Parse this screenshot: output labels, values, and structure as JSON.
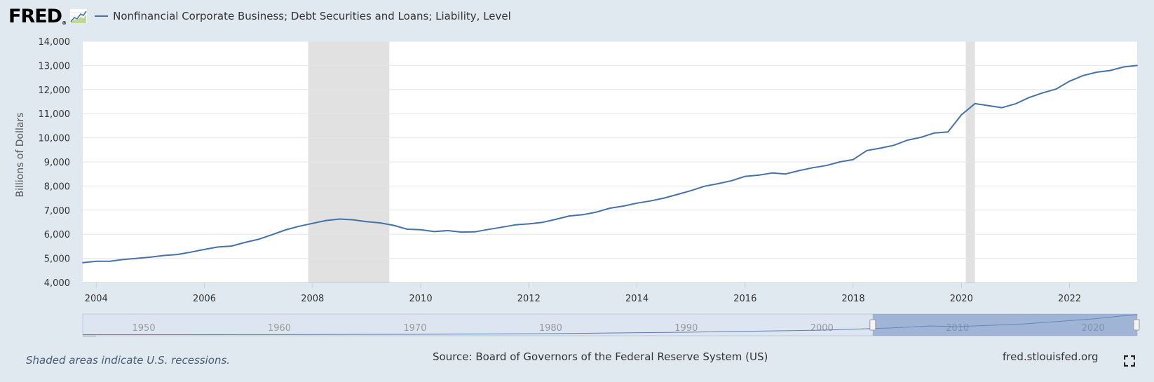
{
  "header": {
    "logo_text": "FRED",
    "logo_mark": "®",
    "legend_label": "Nonfinancial Corporate Business; Debt Securities and Loans; Liability, Level"
  },
  "colors": {
    "series": "#4572a7",
    "recession": "#e1e1e1",
    "background": "#e1e9f0",
    "navigator_mask": "#6e8cc0"
  },
  "footer": {
    "recession_note": "Shaded areas indicate U.S. recessions.",
    "source": "Source: Board of Governors of the Federal Reserve System (US)",
    "site": "fred.stlouisfed.org"
  },
  "icons": {
    "fullscreen": "fullscreen-icon",
    "logo_graph": "fred-graph-icon"
  },
  "chart_data": {
    "type": "line",
    "title": "",
    "xlabel": "",
    "ylabel": "Billions of Dollars",
    "ylim": [
      4000,
      14000
    ],
    "xlim": [
      2003.75,
      2023.25
    ],
    "y_ticks": [
      "4,000",
      "5,000",
      "6,000",
      "7,000",
      "8,000",
      "9,000",
      "10,000",
      "11,000",
      "12,000",
      "13,000",
      "14,000"
    ],
    "x_ticks": [
      "2004",
      "2006",
      "2008",
      "2010",
      "2012",
      "2014",
      "2016",
      "2018",
      "2020",
      "2022"
    ],
    "grid": true,
    "legend_position": "top-left",
    "recessions": [
      [
        2007.92,
        2009.42
      ],
      [
        2020.08,
        2020.25
      ]
    ],
    "navigator_ticks": [
      "1950",
      "1960",
      "1970",
      "1980",
      "1990",
      "2000",
      "2010",
      "2020"
    ],
    "series": [
      {
        "name": "Nonfinancial Corporate Business; Debt Securities and Loans; Liability, Level",
        "x": [
          2003.75,
          2004.0,
          2004.25,
          2004.5,
          2004.75,
          2005.0,
          2005.25,
          2005.5,
          2005.75,
          2006.0,
          2006.25,
          2006.5,
          2006.75,
          2007.0,
          2007.25,
          2007.5,
          2007.75,
          2008.0,
          2008.25,
          2008.5,
          2008.75,
          2009.0,
          2009.25,
          2009.5,
          2009.75,
          2010.0,
          2010.25,
          2010.5,
          2010.75,
          2011.0,
          2011.25,
          2011.5,
          2011.75,
          2012.0,
          2012.25,
          2012.5,
          2012.75,
          2013.0,
          2013.25,
          2013.5,
          2013.75,
          2014.0,
          2014.25,
          2014.5,
          2014.75,
          2015.0,
          2015.25,
          2015.5,
          2015.75,
          2016.0,
          2016.25,
          2016.5,
          2016.75,
          2017.0,
          2017.25,
          2017.5,
          2017.75,
          2018.0,
          2018.25,
          2018.5,
          2018.75,
          2019.0,
          2019.25,
          2019.5,
          2019.75,
          2020.0,
          2020.25,
          2020.5,
          2020.75,
          2021.0,
          2021.25,
          2021.5,
          2021.75,
          2022.0,
          2022.25,
          2022.5,
          2022.75,
          2023.0,
          2023.25
        ],
        "values": [
          4820,
          4880,
          4880,
          4950,
          5000,
          5050,
          5120,
          5160,
          5260,
          5370,
          5470,
          5510,
          5660,
          5790,
          5980,
          6180,
          6330,
          6450,
          6570,
          6630,
          6600,
          6520,
          6470,
          6370,
          6210,
          6190,
          6110,
          6150,
          6090,
          6100,
          6200,
          6290,
          6390,
          6430,
          6490,
          6620,
          6760,
          6810,
          6920,
          7080,
          7170,
          7290,
          7380,
          7500,
          7650,
          7810,
          7990,
          8100,
          8220,
          8400,
          8450,
          8540,
          8500,
          8640,
          8760,
          8850,
          9000,
          9100,
          9470,
          9570,
          9690,
          9900,
          10020,
          10200,
          10240,
          10950,
          11420,
          11330,
          11250,
          11410,
          11670,
          11860,
          12020,
          12350,
          12580,
          12720,
          12790,
          12940,
          13000
        ]
      }
    ]
  }
}
